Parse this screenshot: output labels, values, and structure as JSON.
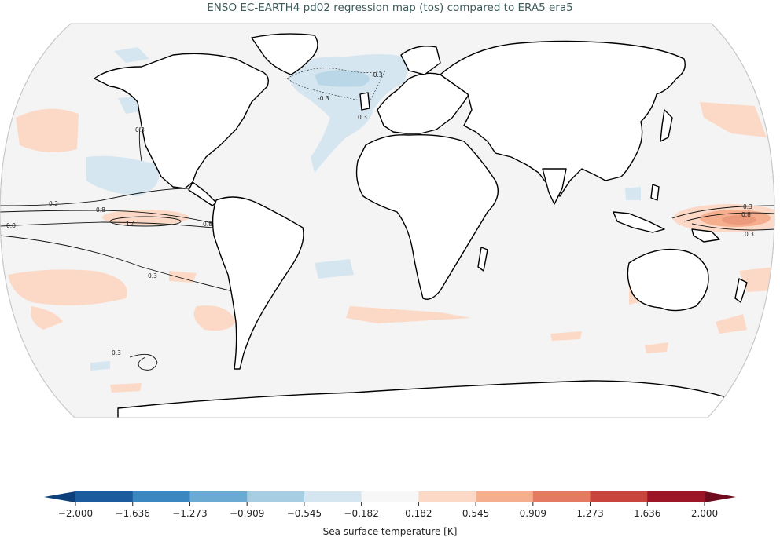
{
  "title": "ENSO EC-EARTH4 pd02 regression map (tos) compared to ERA5 era5",
  "colorbar": {
    "label": "Sea surface temperature [K]",
    "ticks": [
      "−2.000",
      "−1.636",
      "−1.273",
      "−0.909",
      "−0.545",
      "−0.182",
      "0.182",
      "0.545",
      "0.909",
      "1.273",
      "1.636",
      "2.000"
    ],
    "colors": [
      "#1b5b9e",
      "#3a87c2",
      "#6aaad3",
      "#a7cde3",
      "#d6e6f0",
      "#f7f7f7",
      "#fcd9c6",
      "#f5ae8e",
      "#e47a62",
      "#c9443c",
      "#9c1627"
    ]
  },
  "map": {
    "projection": "robinson",
    "ocean_color": "#f4f4f4",
    "land_color": "#ffffff",
    "contour_labels": [
      "0.3",
      "0.8",
      "1.4",
      "0.8",
      "0.8",
      "0.3",
      "0.3",
      "0.3",
      "0.8",
      "0.3",
      "-0.3",
      "-0.3",
      "0.3",
      "0.3"
    ]
  }
}
